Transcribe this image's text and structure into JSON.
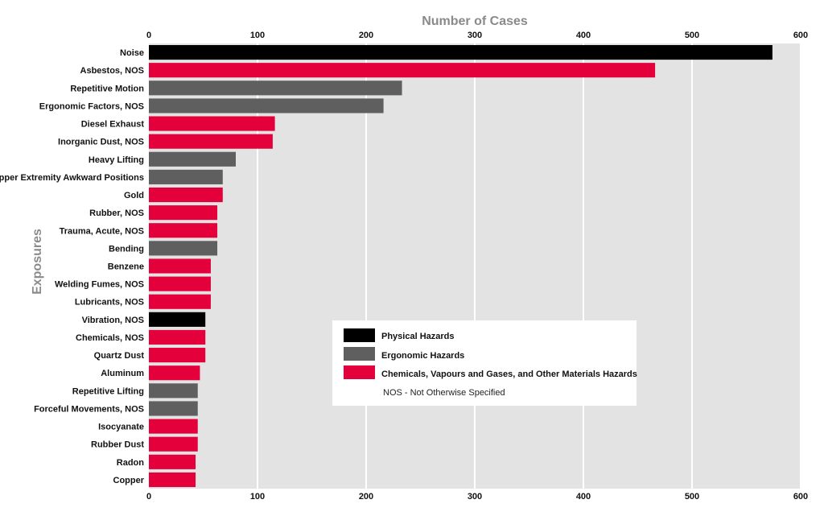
{
  "chart_data": {
    "type": "bar",
    "orientation": "horizontal",
    "title": "",
    "xlabel": "Number of Cases",
    "ylabel": "Exposures",
    "xlim": [
      0,
      600
    ],
    "xticks": [
      0,
      100,
      200,
      300,
      400,
      500,
      600
    ],
    "grid": true,
    "categories": [
      "Noise",
      "Asbestos, NOS",
      "Repetitive Motion",
      "Ergonomic Factors, NOS",
      "Diesel Exhaust",
      "Inorganic Dust, NOS",
      "Heavy Lifting",
      "Upper Extremity Awkward Positions",
      "Gold",
      "Rubber, NOS",
      "Trauma, Acute, NOS",
      "Bending",
      "Benzene",
      "Welding Fumes, NOS",
      "Lubricants, NOS",
      "Vibration, NOS",
      "Chemicals, NOS",
      "Quartz Dust",
      "Aluminum",
      "Repetitive Lifting",
      "Forceful Movements, NOS",
      "Isocyanate",
      "Rubber Dust",
      "Radon",
      "Copper"
    ],
    "values": [
      574,
      466,
      233,
      216,
      116,
      114,
      80,
      68,
      68,
      63,
      63,
      63,
      57,
      57,
      57,
      52,
      52,
      52,
      47,
      45,
      45,
      45,
      45,
      43,
      43
    ],
    "groups": [
      "physical",
      "chemical",
      "ergonomic",
      "ergonomic",
      "chemical",
      "chemical",
      "ergonomic",
      "ergonomic",
      "chemical",
      "chemical",
      "chemical",
      "ergonomic",
      "chemical",
      "chemical",
      "chemical",
      "physical",
      "chemical",
      "chemical",
      "chemical",
      "ergonomic",
      "ergonomic",
      "chemical",
      "chemical",
      "chemical",
      "chemical"
    ],
    "legend": {
      "placement": "lower-center",
      "entries": [
        {
          "key": "physical",
          "label": "Physical Hazards",
          "color": "#000000"
        },
        {
          "key": "ergonomic",
          "label": "Ergonomic Hazards",
          "color": "#5f5f5f"
        },
        {
          "key": "chemical",
          "label": "Chemicals, Vapours and Gases, and Other Materials Hazards",
          "color": "#e4003b"
        }
      ],
      "note": "NOS - Not Otherwise Specified"
    },
    "colors": {
      "plot_background": "#e3e3e3",
      "gridline": "#ffffff"
    }
  }
}
